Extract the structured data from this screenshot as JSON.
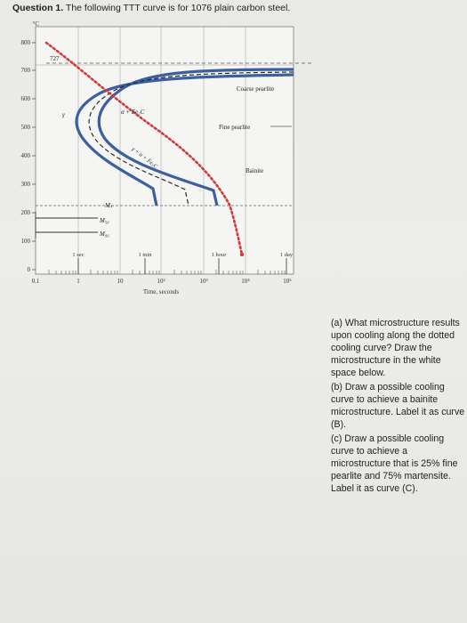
{
  "question": {
    "number": "Question 1.",
    "text": " The following TTT curve is for 1076 plain carbon steel."
  },
  "chart": {
    "yunit": "°C",
    "yticks": [
      "800",
      "700",
      "600",
      "500",
      "400",
      "300",
      "200",
      "100",
      "0"
    ],
    "xticks": [
      "0.1",
      "1",
      "10",
      "10²",
      "10³",
      "10⁴",
      "10⁵"
    ],
    "xlabel": "Time, seconds",
    "time_markers": [
      "1 sec",
      "1 min",
      "1 hour",
      "1 day"
    ],
    "eutectoid_label": "727",
    "labels": {
      "gamma": "γ",
      "alpha_fe3c": "α + Fe₃C",
      "gamma_alpha_fe3c": "γ + α + Fe₃C",
      "coarse_pearlite": "Coarse pearlite",
      "fine_pearlite": "Fine pearlite",
      "bainite": "Bainite",
      "ms": "Mₛ",
      "m50": "M₅₀",
      "m90": "M₉₀"
    }
  },
  "parts": [
    "(a) What microstructure results upon cooling along the dotted cooling curve? Draw the microstructure in the white space below.",
    "(b) Draw a possible cooling curve to achieve a bainite microstructure. Label it as curve (B).",
    "(c) Draw a possible cooling curve to achieve a microstructure that is 25% fine pearlite and 75% martensite. Label it as curve (C)."
  ]
}
